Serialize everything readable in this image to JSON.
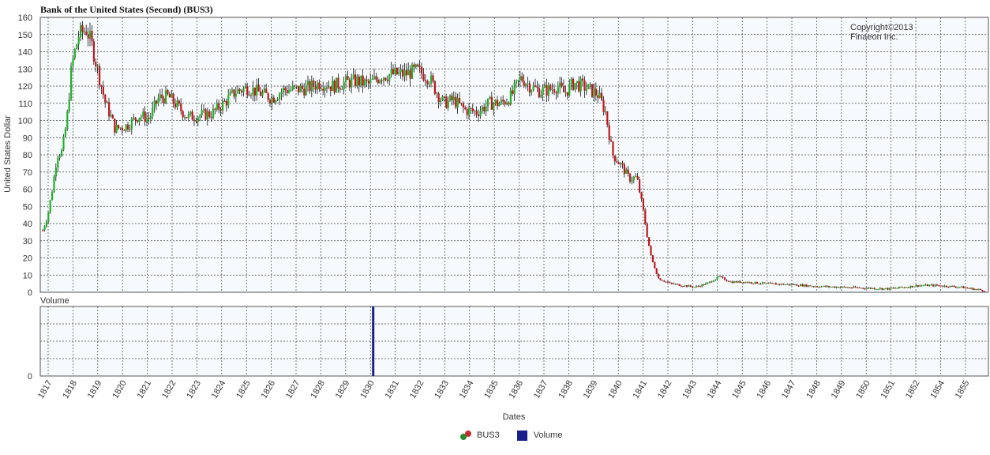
{
  "chart_data": {
    "type": "candlestick",
    "title": "Bank of the United States (Second) (BUS3)",
    "copyright": "Copyright©2013",
    "company": "Finaeon Inc.",
    "ylabel": "United States Dollar",
    "xlabel": "Dates",
    "ylim": [
      0,
      160
    ],
    "yticks": [
      0,
      10,
      20,
      30,
      40,
      50,
      60,
      70,
      80,
      90,
      100,
      110,
      120,
      130,
      140,
      150,
      160
    ],
    "volume_panel": {
      "label": "Volume",
      "yticks": [
        0
      ],
      "spike_year": "1830"
    },
    "x_tick_labels": [
      "1817",
      "1818",
      "1819",
      "1820",
      "1821",
      "1822",
      "1823",
      "1824",
      "1825",
      "1826",
      "1827",
      "1828",
      "1829",
      "1830",
      "1831",
      "1832",
      "1833",
      "1834",
      "1835",
      "1836",
      "1837",
      "1838",
      "1839",
      "1840",
      "1841",
      "1842",
      "1843",
      "1844",
      "1845",
      "1846",
      "1847",
      "1848",
      "1849",
      "1850",
      "1851",
      "1852",
      "1854",
      "1855"
    ],
    "price_path": [
      [
        1816.0,
        36
      ],
      [
        1816.2,
        44
      ],
      [
        1816.4,
        60
      ],
      [
        1816.6,
        80
      ],
      [
        1816.8,
        82
      ],
      [
        1817.0,
        100
      ],
      [
        1817.2,
        132
      ],
      [
        1817.5,
        150
      ],
      [
        1817.8,
        153
      ],
      [
        1818.0,
        146
      ],
      [
        1818.3,
        128
      ],
      [
        1818.6,
        110
      ],
      [
        1818.8,
        103
      ],
      [
        1819.0,
        95
      ],
      [
        1819.5,
        97
      ],
      [
        1820.0,
        103
      ],
      [
        1820.4,
        101
      ],
      [
        1820.8,
        113
      ],
      [
        1821.2,
        114
      ],
      [
        1821.6,
        108
      ],
      [
        1822.0,
        102
      ],
      [
        1822.5,
        103
      ],
      [
        1823.0,
        104
      ],
      [
        1823.5,
        110
      ],
      [
        1824.0,
        117
      ],
      [
        1824.5,
        119
      ],
      [
        1825.0,
        116
      ],
      [
        1825.5,
        113
      ],
      [
        1826.0,
        118
      ],
      [
        1826.5,
        118
      ],
      [
        1827.0,
        119
      ],
      [
        1827.5,
        122
      ],
      [
        1828.0,
        120
      ],
      [
        1828.5,
        122
      ],
      [
        1829.0,
        123
      ],
      [
        1829.5,
        121
      ],
      [
        1830.0,
        126
      ],
      [
        1830.5,
        127
      ],
      [
        1831.0,
        127
      ],
      [
        1831.5,
        129
      ],
      [
        1832.0,
        125
      ],
      [
        1832.3,
        117
      ],
      [
        1832.6,
        110
      ],
      [
        1833.0,
        112
      ],
      [
        1833.5,
        106
      ],
      [
        1834.0,
        105
      ],
      [
        1834.5,
        110
      ],
      [
        1835.0,
        110
      ],
      [
        1835.4,
        114
      ],
      [
        1835.8,
        125
      ],
      [
        1836.2,
        120
      ],
      [
        1836.6,
        117
      ],
      [
        1837.0,
        118
      ],
      [
        1837.3,
        120
      ],
      [
        1837.6,
        116
      ],
      [
        1838.0,
        122
      ],
      [
        1838.5,
        119
      ],
      [
        1839.0,
        115
      ],
      [
        1839.3,
        105
      ],
      [
        1839.6,
        80
      ],
      [
        1840.0,
        73
      ],
      [
        1840.3,
        66
      ],
      [
        1840.6,
        67
      ],
      [
        1840.9,
        45
      ],
      [
        1841.0,
        35
      ],
      [
        1841.2,
        20
      ],
      [
        1841.5,
        8
      ],
      [
        1842.0,
        5
      ],
      [
        1842.5,
        4
      ],
      [
        1843.0,
        3
      ],
      [
        1843.5,
        5
      ],
      [
        1844.0,
        9
      ],
      [
        1844.5,
        6
      ],
      [
        1845.0,
        6
      ],
      [
        1846.0,
        5
      ],
      [
        1847.0,
        4.5
      ],
      [
        1848.0,
        3.5
      ],
      [
        1849.0,
        3
      ],
      [
        1850.0,
        2.5
      ],
      [
        1851.0,
        2
      ],
      [
        1851.7,
        3
      ],
      [
        1852.3,
        4
      ],
      [
        1853.0,
        4
      ],
      [
        1854.0,
        3
      ],
      [
        1854.5,
        2
      ],
      [
        1855.0,
        1
      ]
    ],
    "colors": {
      "up": "#22b02a",
      "down": "#c0161c",
      "neutral": "#111111",
      "volume": "#1a1f8c"
    }
  },
  "legend": {
    "items": [
      {
        "label": "BUS3"
      },
      {
        "label": "Volume"
      }
    ]
  }
}
